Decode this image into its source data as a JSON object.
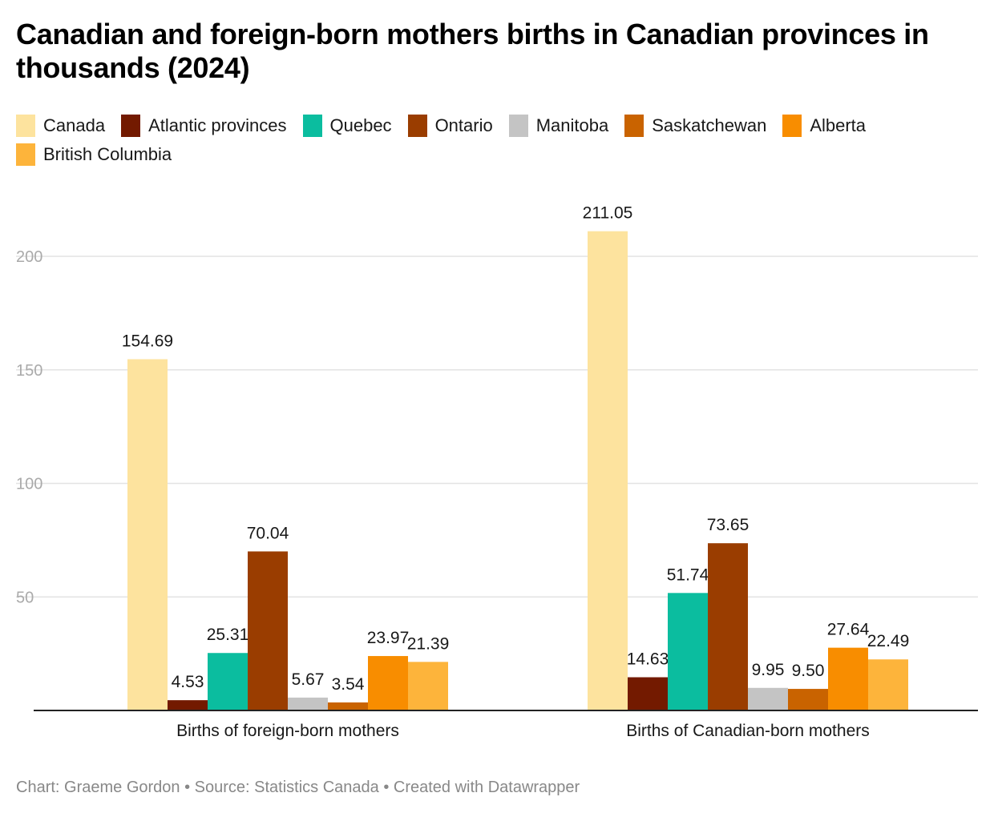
{
  "chart_data": {
    "type": "bar",
    "title": "Canadian and foreign-born mothers births in Canadian provinces in thousands (2024)",
    "xlabel": "",
    "ylabel": "",
    "ylim": [
      0,
      200
    ],
    "yticks": [
      50,
      100,
      150,
      200
    ],
    "grid": true,
    "legend_position": "top",
    "categories": [
      "Births of foreign-born mothers",
      "Births of Canadian-born mothers"
    ],
    "series": [
      {
        "name": "Canada",
        "color": "#fde39e",
        "values": [
          154.69,
          211.05
        ],
        "labels": [
          "154.69",
          "211.05"
        ]
      },
      {
        "name": "Atlantic provinces",
        "color": "#731a00",
        "values": [
          4.53,
          14.63
        ],
        "labels": [
          "4.53",
          "14.63"
        ]
      },
      {
        "name": "Quebec",
        "color": "#0bbd9f",
        "values": [
          25.31,
          51.74
        ],
        "labels": [
          "25.31",
          "51.74"
        ]
      },
      {
        "name": "Ontario",
        "color": "#9a3d00",
        "values": [
          70.04,
          73.65
        ],
        "labels": [
          "70.04",
          "73.65"
        ]
      },
      {
        "name": "Manitoba",
        "color": "#c4c4c4",
        "values": [
          5.67,
          9.95
        ],
        "labels": [
          "5.67",
          "9.95"
        ]
      },
      {
        "name": "Saskatchewan",
        "color": "#c96300",
        "values": [
          3.54,
          9.5
        ],
        "labels": [
          "3.54",
          "9.50"
        ]
      },
      {
        "name": "Alberta",
        "color": "#f88d00",
        "values": [
          23.97,
          27.64
        ],
        "labels": [
          "23.97",
          "27.64"
        ]
      },
      {
        "name": "British Columbia",
        "color": "#fdb43b",
        "values": [
          21.39,
          22.49
        ],
        "labels": [
          "21.39",
          "22.49"
        ]
      }
    ]
  },
  "footer": "Chart: Graeme Gordon • Source: Statistics Canada • Created with Datawrapper"
}
